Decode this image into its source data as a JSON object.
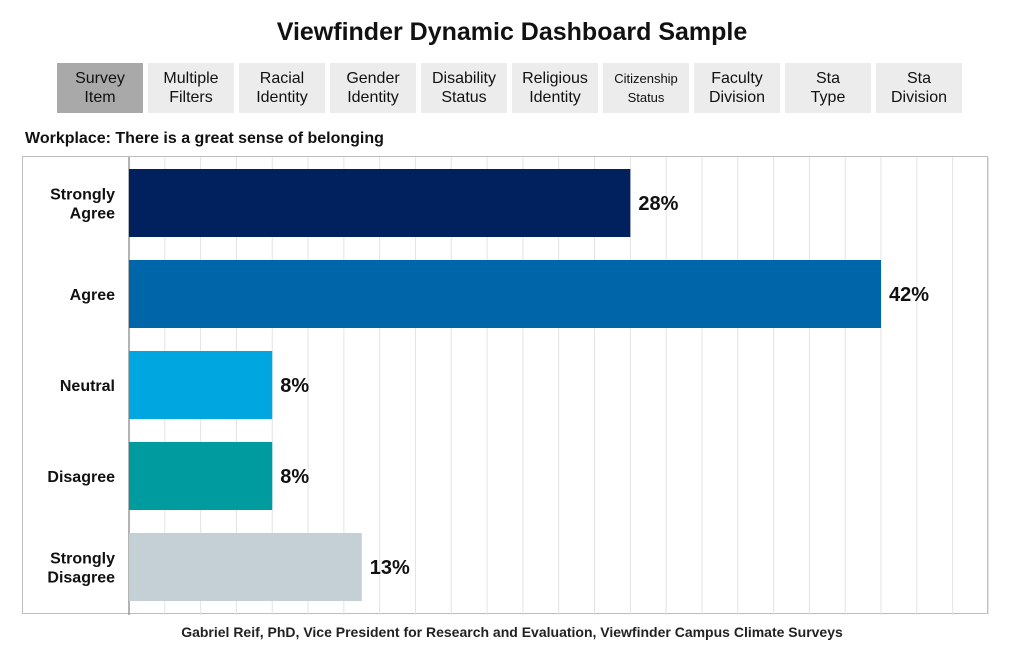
{
  "title": "Viewfinder Dynamic Dashboard Sample",
  "tabs": [
    {
      "label": "Survey\nItem",
      "active": true
    },
    {
      "label": "Multiple\nFilters",
      "active": false
    },
    {
      "label": "Racial\nIdentity",
      "active": false
    },
    {
      "label": "Gender\nIdentity",
      "active": false
    },
    {
      "label": "Disability\nStatus",
      "active": false
    },
    {
      "label": "Religious\nIdentity",
      "active": false
    },
    {
      "label": "Citizenship\nStatus",
      "active": false
    },
    {
      "label": "Faculty\nDivision",
      "active": false
    },
    {
      "label": "Sta\nType",
      "active": false
    },
    {
      "label": "Sta\nDivision",
      "active": false
    }
  ],
  "subtitle": "Workplace: There is a great sense of belonging",
  "footer": "Gabriel Reif, PhD, Vice President for Research and Evaluation, Viewfinder Campus Climate Surveys",
  "chart_data": {
    "type": "bar",
    "orientation": "horizontal",
    "title": "",
    "xlabel": "",
    "ylabel": "",
    "categories": [
      "Strongly\nAgree",
      "Agree",
      "Neutral",
      "Disagree",
      "Strongly\nDisagree"
    ],
    "values": [
      28,
      42,
      8,
      8,
      13
    ],
    "value_labels": [
      "28%",
      "42%",
      "8%",
      "8%",
      "13%"
    ],
    "colors": [
      "#00215e",
      "#0066aa",
      "#00a6e0",
      "#009b9e",
      "#c5d0d6"
    ],
    "xlim": [
      0,
      48
    ],
    "grid": "vertical",
    "legend": "none"
  }
}
